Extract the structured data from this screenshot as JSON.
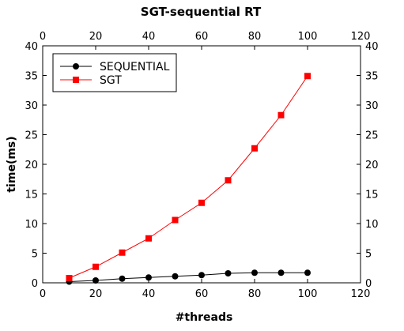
{
  "chart_data": {
    "type": "line",
    "title": "SGT-sequential RT",
    "xlabel": "#threads",
    "ylabel": "time(ms)",
    "xlim": [
      0,
      120
    ],
    "ylim": [
      0,
      40
    ],
    "x_ticks": [
      0,
      20,
      40,
      60,
      80,
      100,
      120
    ],
    "y_ticks": [
      0,
      5,
      10,
      15,
      20,
      25,
      30,
      35,
      40
    ],
    "grid": false,
    "legend_position": "top-left",
    "x": [
      10,
      20,
      30,
      40,
      50,
      60,
      70,
      80,
      90,
      100
    ],
    "series": [
      {
        "name": "SEQUENTIAL",
        "color": "#000000",
        "marker": "circle",
        "values": [
          0.2,
          0.4,
          0.7,
          0.9,
          1.1,
          1.3,
          1.6,
          1.7,
          1.7,
          1.7
        ]
      },
      {
        "name": "SGT",
        "color": "#ff0000",
        "marker": "square",
        "values": [
          0.8,
          2.7,
          5.1,
          7.5,
          10.6,
          13.5,
          17.3,
          22.7,
          28.3,
          34.9
        ]
      }
    ]
  }
}
